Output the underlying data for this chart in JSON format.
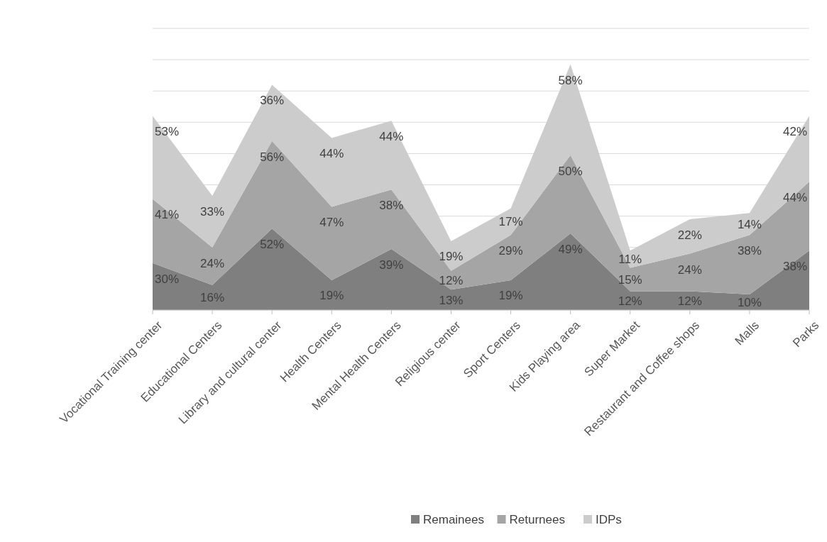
{
  "chart_data": {
    "type": "area",
    "stacked": true,
    "categories": [
      "Vocational Training center",
      "Educational Centers",
      "Library and cultural center",
      "Health Centers",
      "Mental Health Centers",
      "Religious center",
      "Sport Centers",
      "Kids Playing area",
      "Super Market",
      "Restaurant and Coffee shops",
      "Malls",
      "Parks"
    ],
    "series": [
      {
        "name": "Remainees",
        "color": "#7f7f7f",
        "values": [
          30,
          16,
          52,
          19,
          39,
          13,
          19,
          49,
          12,
          12,
          10,
          38
        ],
        "value_labels": [
          "30%",
          "16%",
          "52%",
          "19%",
          "39%",
          "13%",
          "19%",
          "49%",
          "12%",
          "12%",
          "10%",
          "38%"
        ]
      },
      {
        "name": "Returnees",
        "color": "#a5a5a5",
        "values": [
          41,
          24,
          56,
          47,
          38,
          12,
          29,
          50,
          15,
          24,
          38,
          44
        ],
        "value_labels": [
          "41%",
          "24%",
          "56%",
          "47%",
          "38%",
          "12%",
          "29%",
          "50%",
          "15%",
          "24%",
          "38%",
          "44%"
        ]
      },
      {
        "name": "IDPs",
        "color": "#cccccc",
        "values": [
          53,
          33,
          36,
          44,
          44,
          19,
          17,
          58,
          11,
          22,
          14,
          42
        ],
        "value_labels": [
          "53%",
          "33%",
          "36%",
          "44%",
          "44%",
          "19%",
          "17%",
          "58%",
          "11%",
          "22%",
          "14%",
          "42%"
        ]
      }
    ],
    "ylim": [
      0,
      180
    ],
    "yticks": [
      {
        "value": 0,
        "label": null
      },
      {
        "value": 20,
        "label": null
      },
      {
        "value": 40,
        "label": null
      },
      {
        "value": 60,
        "label": null
      },
      {
        "value": 80,
        "label": null
      },
      {
        "value": 100,
        "label": null
      },
      {
        "value": 120,
        "label": null
      },
      {
        "value": 140,
        "label": null
      },
      {
        "value": 160,
        "label": null
      },
      {
        "value": 180,
        "label": null
      }
    ],
    "tick_labels": "x",
    "grid": "y",
    "legend": "bottom"
  }
}
